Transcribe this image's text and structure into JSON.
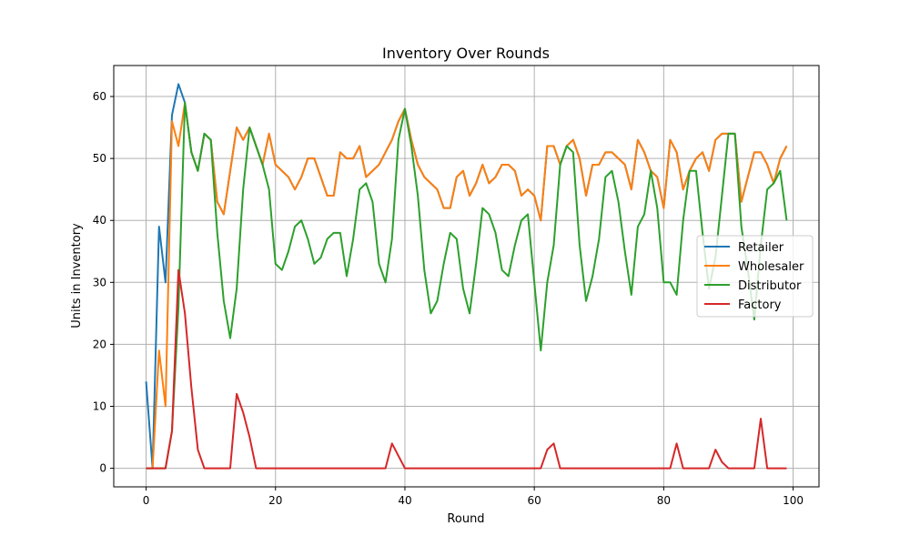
{
  "chart_data": {
    "type": "line",
    "title": "Inventory Over Rounds",
    "xlabel": "Round",
    "ylabel": "Units in Inventory",
    "xlim": [
      -5,
      104
    ],
    "ylim": [
      -3,
      65
    ],
    "xticks": [
      0,
      20,
      40,
      60,
      80,
      100
    ],
    "yticks": [
      0,
      10,
      20,
      30,
      40,
      50,
      60
    ],
    "grid": true,
    "legend_position": "center-right",
    "x": [
      0,
      1,
      2,
      3,
      4,
      5,
      6,
      7,
      8,
      9,
      10,
      11,
      12,
      13,
      14,
      15,
      16,
      17,
      18,
      19,
      20,
      21,
      22,
      23,
      24,
      25,
      26,
      27,
      28,
      29,
      30,
      31,
      32,
      33,
      34,
      35,
      36,
      37,
      38,
      39,
      40,
      41,
      42,
      43,
      44,
      45,
      46,
      47,
      48,
      49,
      50,
      51,
      52,
      53,
      54,
      55,
      56,
      57,
      58,
      59,
      60,
      61,
      62,
      63,
      64,
      65,
      66,
      67,
      68,
      69,
      70,
      71,
      72,
      73,
      74,
      75,
      76,
      77,
      78,
      79,
      80,
      81,
      82,
      83,
      84,
      85,
      86,
      87,
      88,
      89,
      90,
      91,
      92,
      93,
      94,
      95,
      96,
      97,
      98,
      99
    ],
    "series": [
      {
        "name": "Retailer",
        "color": "#1f77b4",
        "values": [
          14,
          0,
          39,
          30,
          57,
          62,
          59,
          51,
          48,
          54,
          53,
          43,
          41,
          48,
          55,
          53,
          55,
          52,
          49,
          54,
          49,
          48,
          47,
          45,
          47,
          50,
          50,
          47,
          44,
          44,
          51,
          50,
          50,
          52,
          47,
          48,
          49,
          51,
          53,
          56,
          58,
          53,
          49,
          47,
          46,
          45,
          42,
          42,
          47,
          48,
          44,
          46,
          49,
          46,
          47,
          49,
          49,
          48,
          44,
          45,
          44,
          40,
          52,
          52,
          49,
          52,
          53,
          50,
          44,
          49,
          49,
          51,
          51,
          50,
          49,
          45,
          53,
          51,
          48,
          47,
          42,
          53,
          51,
          45,
          48,
          50,
          51,
          48,
          53,
          54,
          54,
          54,
          43,
          47,
          51,
          51,
          49,
          46,
          50,
          52
        ]
      },
      {
        "name": "Wholesaler",
        "color": "#ff7f0e",
        "values": [
          0,
          0,
          19,
          10,
          56,
          52,
          59,
          51,
          48,
          54,
          53,
          43,
          41,
          48,
          55,
          53,
          55,
          52,
          49,
          54,
          49,
          48,
          47,
          45,
          47,
          50,
          50,
          47,
          44,
          44,
          51,
          50,
          50,
          52,
          47,
          48,
          49,
          51,
          53,
          56,
          58,
          53,
          49,
          47,
          46,
          45,
          42,
          42,
          47,
          48,
          44,
          46,
          49,
          46,
          47,
          49,
          49,
          48,
          44,
          45,
          44,
          40,
          52,
          52,
          49,
          52,
          53,
          50,
          44,
          49,
          49,
          51,
          51,
          50,
          49,
          45,
          53,
          51,
          48,
          47,
          42,
          53,
          51,
          45,
          48,
          50,
          51,
          48,
          53,
          54,
          54,
          54,
          43,
          47,
          51,
          51,
          49,
          46,
          50,
          52
        ]
      },
      {
        "name": "Distributor",
        "color": "#2ca02c",
        "values": [
          0,
          0,
          0,
          0,
          6,
          26,
          59,
          51,
          48,
          54,
          53,
          38,
          27,
          21,
          29,
          45,
          55,
          52,
          49,
          45,
          33,
          32,
          35,
          39,
          40,
          37,
          33,
          34,
          37,
          38,
          38,
          31,
          37,
          45,
          46,
          43,
          33,
          30,
          37,
          53,
          58,
          52,
          44,
          32,
          25,
          27,
          33,
          38,
          37,
          29,
          25,
          33,
          42,
          41,
          38,
          32,
          31,
          36,
          40,
          41,
          30,
          19,
          30,
          36,
          49,
          52,
          51,
          36,
          27,
          31,
          37,
          47,
          48,
          43,
          35,
          28,
          39,
          41,
          48,
          42,
          30,
          30,
          28,
          40,
          48,
          48,
          38,
          29,
          34,
          44,
          54,
          54,
          39,
          32,
          24,
          36,
          45,
          46,
          48,
          40
        ]
      },
      {
        "name": "Factory",
        "color": "#d62728",
        "values": [
          0,
          0,
          0,
          0,
          6,
          32,
          25,
          13,
          3,
          0,
          0,
          0,
          0,
          0,
          12,
          9,
          5,
          0,
          0,
          0,
          0,
          0,
          0,
          0,
          0,
          0,
          0,
          0,
          0,
          0,
          0,
          0,
          0,
          0,
          0,
          0,
          0,
          0,
          4,
          2,
          0,
          0,
          0,
          0,
          0,
          0,
          0,
          0,
          0,
          0,
          0,
          0,
          0,
          0,
          0,
          0,
          0,
          0,
          0,
          0,
          0,
          0,
          3,
          4,
          0,
          0,
          0,
          0,
          0,
          0,
          0,
          0,
          0,
          0,
          0,
          0,
          0,
          0,
          0,
          0,
          0,
          0,
          4,
          0,
          0,
          0,
          0,
          0,
          3,
          1,
          0,
          0,
          0,
          0,
          0,
          8,
          0,
          0,
          0,
          0
        ]
      }
    ]
  }
}
